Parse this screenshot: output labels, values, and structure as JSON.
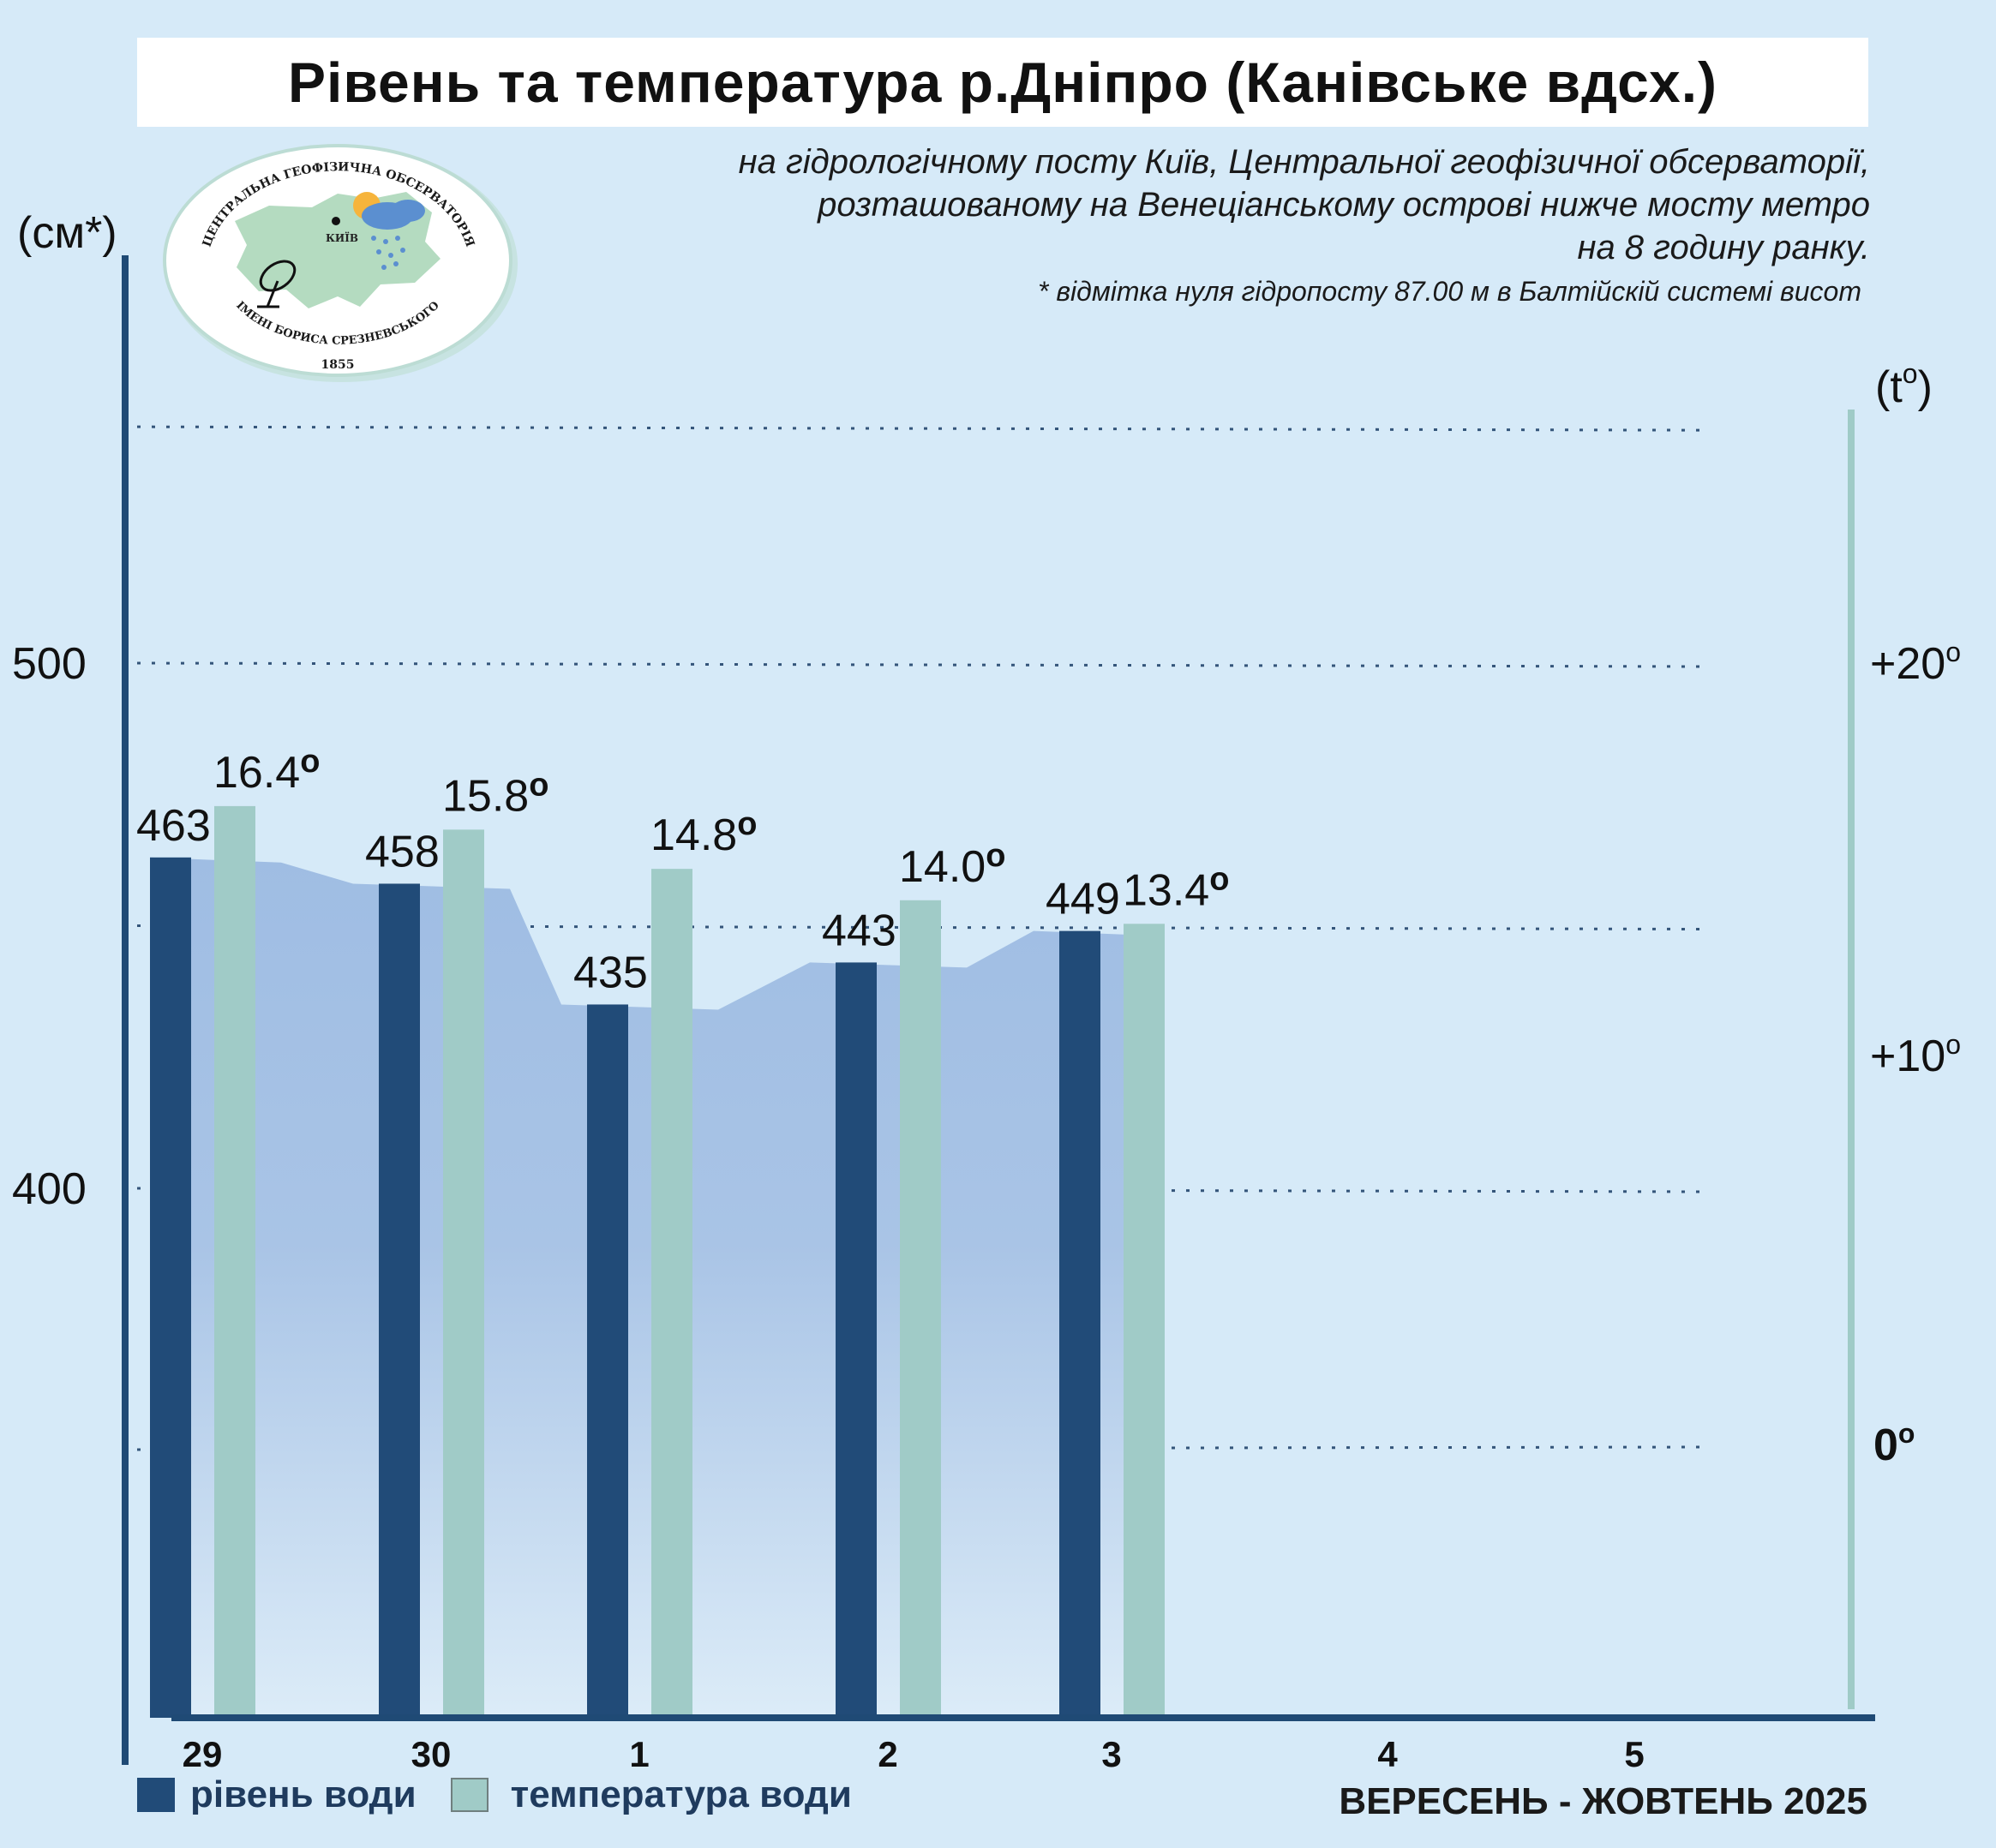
{
  "title": "Рівень та температура р.Дніпро (Канівське вдсх.)",
  "subtitle_lines": [
    "на гідрологічному посту Київ, Центральної геофізичної обсерваторії,",
    "розташованому на Венеціанському острові нижче мосту метро",
    "на 8 годину ранку."
  ],
  "footnote": "* відмітка нуля гідропосту 87.00 м в Балтійскій системі висот",
  "logo": {
    "top_text": "ЦЕНТРАЛЬНА ГЕОФІЗИЧНА ОБСЕРВАТОРІЯ",
    "bottom_text": "ІМЕНІ БОРИСА СРЕЗНЕВСЬКОГО",
    "year": "1855",
    "city": "КИЇВ"
  },
  "legend": {
    "level_label": "рівень води",
    "temp_label": "температура води"
  },
  "period_label": "ВЕРЕСЕНЬ - ЖОВТЕНЬ 2025",
  "colors": {
    "background": "#d6eaf8",
    "level_bar": "#214b78",
    "temp_bar": "#a0cbc7",
    "area_top": "#9fbde3",
    "area_bottom": "#dcecf8",
    "axis": "#1f4a75",
    "grid": "#34557a",
    "temp_axis": "#9fcbc7"
  },
  "chart_data": {
    "type": "bar",
    "categories": [
      "29",
      "30",
      "1",
      "2",
      "3",
      "4",
      "5"
    ],
    "series": [
      {
        "name": "рівень води",
        "axis": "left",
        "values": [
          463,
          458,
          435,
          443,
          449,
          null,
          null
        ]
      },
      {
        "name": "температура води",
        "axis": "right",
        "values": [
          16.4,
          15.8,
          14.8,
          14.0,
          13.4,
          null,
          null
        ]
      }
    ],
    "level_labels": [
      "463",
      "458",
      "435",
      "443",
      "449"
    ],
    "temp_labels": [
      "16.4",
      "15.8",
      "14.8",
      "14.0",
      "13.4"
    ],
    "degree_symbol": "o",
    "left_axis": {
      "unit": "(см*)",
      "ticks": [
        {
          "value": 400,
          "label": "400"
        },
        {
          "value": 500,
          "label": "500"
        }
      ],
      "range": [
        300,
        550
      ]
    },
    "right_axis": {
      "unit": "(t",
      "unit_sup": "o",
      "unit_close": ")",
      "ticks": [
        {
          "value": 0,
          "label": "0",
          "sup": "o"
        },
        {
          "value": 10,
          "label": "+10",
          "sup": "o"
        },
        {
          "value": 20,
          "label": "+20",
          "sup": "o"
        }
      ],
      "range": [
        -7,
        26
      ]
    },
    "area_fill_under_level": true,
    "grid": true
  }
}
